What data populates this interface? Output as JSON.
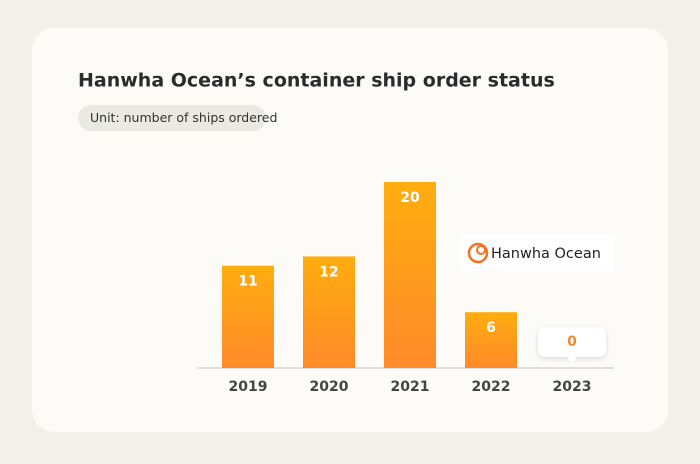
{
  "chart_data": {
    "type": "bar",
    "title": "Hanwha Ocean’s container ship order status",
    "subtitle": "Unit: number of ships ordered",
    "categories": [
      "2019",
      "2020",
      "2021",
      "2022",
      "2023"
    ],
    "values": [
      11,
      12,
      20,
      6,
      0
    ],
    "color": "#ffad0f",
    "logo": "Hanwha Ocean"
  }
}
